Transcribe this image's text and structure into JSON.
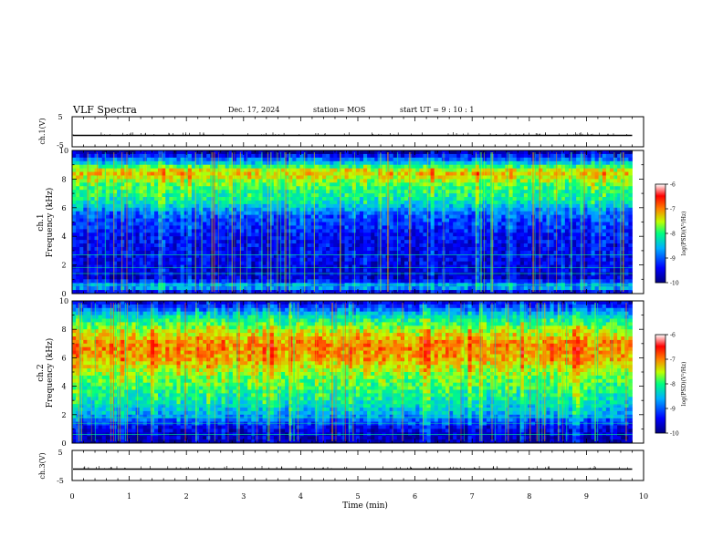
{
  "header": {
    "title": "VLF Spectra",
    "date": "Dec. 17, 2024",
    "station": "station= MOS",
    "start": "start  UT =   9 : 10 : 1"
  },
  "chart_data": [
    {
      "type": "line",
      "panel": "ch1-waveform",
      "ylabel": "ch.1(V)",
      "ylim": [
        -5,
        5
      ],
      "yticks": [
        "5",
        "-5"
      ],
      "xlim": [
        0,
        10
      ],
      "description_values": {
        "level": -1.2
      }
    },
    {
      "type": "heatmap",
      "panel": "ch1-spectrogram",
      "ylabel": "ch.1\nFrequency (kHz)",
      "ylim": [
        0,
        10
      ],
      "yticks": [
        "0",
        "2",
        "4",
        "6",
        "8",
        "10"
      ],
      "xlim": [
        0,
        9.8
      ],
      "colorbar": {
        "label": "log(PSD)(V²/Hz)",
        "range": [
          -10,
          -6
        ],
        "ticks": [
          "-6",
          "-7",
          "-8",
          "-9",
          "-10"
        ]
      },
      "band_profile_khz": [
        {
          "f": 0.0,
          "v": -9.8
        },
        {
          "f": 0.5,
          "v": -8.4
        },
        {
          "f": 1.0,
          "v": -9.6
        },
        {
          "f": 2.0,
          "v": -9.5
        },
        {
          "f": 4.0,
          "v": -9.4
        },
        {
          "f": 5.5,
          "v": -9.0
        },
        {
          "f": 6.5,
          "v": -8.2
        },
        {
          "f": 7.5,
          "v": -7.9
        },
        {
          "f": 8.5,
          "v": -7.2
        },
        {
          "f": 9.2,
          "v": -8.6
        },
        {
          "f": 10.0,
          "v": -10.0
        }
      ]
    },
    {
      "type": "heatmap",
      "panel": "ch2-spectrogram",
      "ylabel": "ch.2\nFrequency (kHz)",
      "ylim": [
        0,
        10
      ],
      "yticks": [
        "0",
        "2",
        "4",
        "6",
        "8",
        "10"
      ],
      "xlim": [
        0,
        9.8
      ],
      "colorbar": {
        "label": "log(PSD)(V²/Hz)",
        "range": [
          -10,
          -6
        ],
        "ticks": [
          "-6",
          "-7",
          "-8",
          "-9",
          "-10"
        ]
      },
      "band_profile_khz": [
        {
          "f": 0.0,
          "v": -9.8
        },
        {
          "f": 1.0,
          "v": -9.5
        },
        {
          "f": 2.0,
          "v": -8.6
        },
        {
          "f": 3.0,
          "v": -8.2
        },
        {
          "f": 4.0,
          "v": -7.9
        },
        {
          "f": 5.0,
          "v": -7.6
        },
        {
          "f": 6.0,
          "v": -7.1
        },
        {
          "f": 7.0,
          "v": -7.0
        },
        {
          "f": 8.0,
          "v": -7.6
        },
        {
          "f": 9.0,
          "v": -8.4
        },
        {
          "f": 10.0,
          "v": -9.6
        }
      ]
    },
    {
      "type": "line",
      "panel": "ch3-waveform",
      "ylabel": "ch.3(V)",
      "ylim": [
        -5,
        5
      ],
      "yticks": [
        "5",
        "-5"
      ],
      "xlim": [
        0,
        10
      ],
      "description_values": {
        "level": -1.2
      }
    }
  ],
  "x_axis": {
    "label": "Time  (min)",
    "ticks": [
      "0",
      "1",
      "2",
      "3",
      "4",
      "5",
      "6",
      "7",
      "8",
      "9",
      "10"
    ]
  },
  "colors": {
    "scale": [
      "#000080",
      "#0000ff",
      "#00b0ff",
      "#00ff80",
      "#c0ff00",
      "#ff8000",
      "#ff0000",
      "#ffffff"
    ]
  }
}
